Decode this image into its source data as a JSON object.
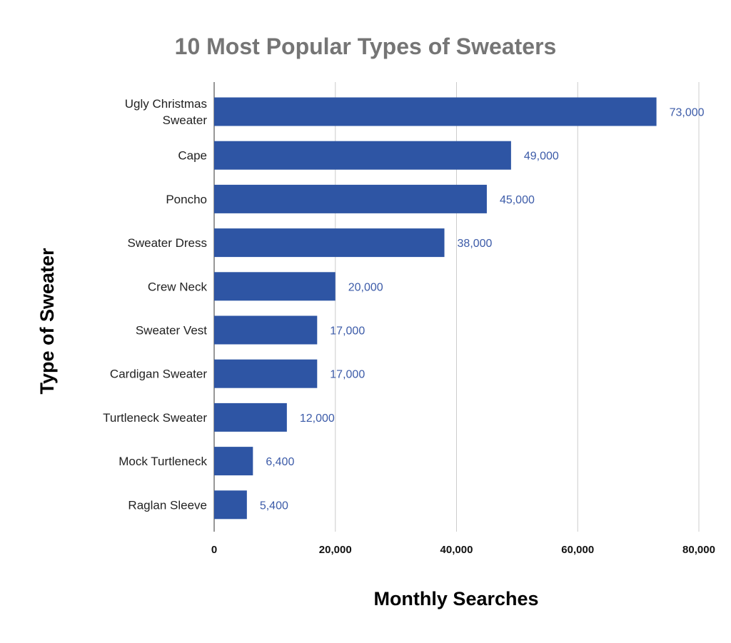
{
  "chart_data": {
    "type": "bar",
    "orientation": "horizontal",
    "title": "10 Most Popular Types of Sweaters",
    "xlabel": "Monthly Searches",
    "ylabel": "Type of Sweater",
    "categories": [
      "Ugly Christmas Sweater",
      "Cape",
      "Poncho",
      "Sweater Dress",
      "Crew Neck",
      "Sweater Vest",
      "Cardigan Sweater",
      "Turtleneck Sweater",
      "Mock Turtleneck",
      "Raglan Sleeve"
    ],
    "category_lines": [
      [
        "Ugly Christmas",
        "Sweater"
      ],
      [
        "Cape"
      ],
      [
        "Poncho"
      ],
      [
        "Sweater Dress"
      ],
      [
        "Crew Neck"
      ],
      [
        "Sweater Vest"
      ],
      [
        "Cardigan Sweater"
      ],
      [
        "Turtleneck Sweater"
      ],
      [
        "Mock Turtleneck"
      ],
      [
        "Raglan Sleeve"
      ]
    ],
    "values": [
      73000,
      49000,
      45000,
      38000,
      20000,
      17000,
      17000,
      12000,
      6400,
      5400
    ],
    "value_labels": [
      "73,000",
      "49,000",
      "45,000",
      "38,000",
      "20,000",
      "17,000",
      "17,000",
      "12,000",
      "6,400",
      "5,400"
    ],
    "xlim": [
      0,
      80000
    ],
    "xticks": [
      0,
      20000,
      40000,
      60000,
      80000
    ],
    "xtick_labels": [
      "0",
      "20,000",
      "40,000",
      "60,000",
      "80,000"
    ],
    "grid": true,
    "legend": "none",
    "colors": {
      "bar": "#2e55a4",
      "value_label": "#3c5ba8",
      "title": "#757575",
      "grid": "#cccccc"
    }
  }
}
